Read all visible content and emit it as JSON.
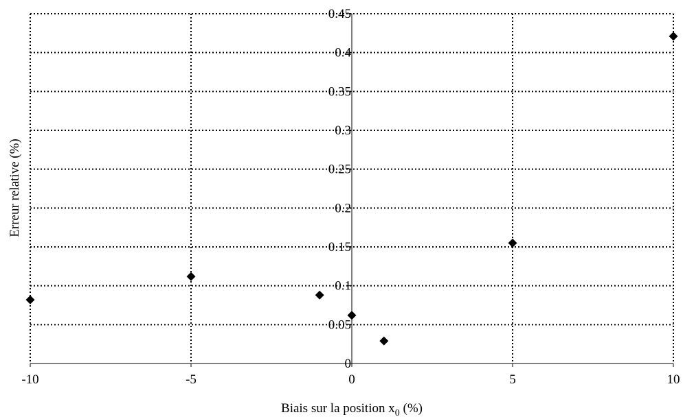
{
  "chart_data": {
    "type": "scatter",
    "title": "",
    "xlabel": "Biais sur la position x",
    "xlabel_sub": "0",
    "xlabel_suffix": " (%)",
    "ylabel": "Erreur relative (%)",
    "xlim": [
      -10,
      10
    ],
    "ylim": [
      0,
      0.45
    ],
    "xticks": [
      "-10",
      "-5",
      "0",
      "5",
      "10"
    ],
    "yticks": [
      "0",
      "0.05",
      "0.1",
      "0.15",
      "0.2",
      "0.25",
      "0.3",
      "0.35",
      "0.4",
      "0.45"
    ],
    "grid": true,
    "marker": "diamond",
    "marker_color": "#000000",
    "x": [
      -10,
      -5,
      -1,
      0,
      1,
      5,
      10
    ],
    "y": [
      0.082,
      0.112,
      0.088,
      0.062,
      0.029,
      0.155,
      0.421
    ]
  }
}
